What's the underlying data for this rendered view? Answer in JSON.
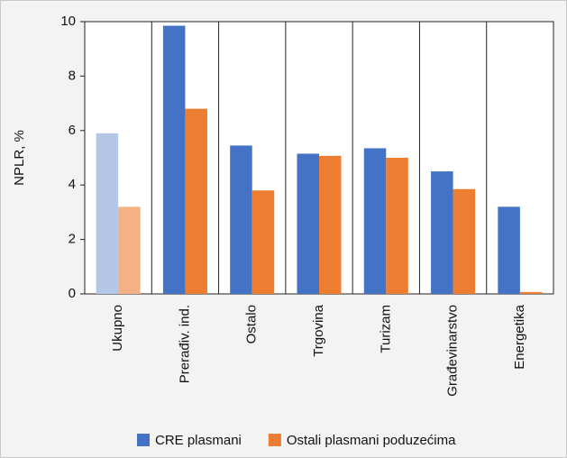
{
  "chart_data": {
    "type": "bar",
    "y_label": "NPLR, %",
    "categories": [
      "Ukupno",
      "Prerađiv. ind.",
      "Ostalo",
      "Trgovina",
      "Turizam",
      "Građevinarstvo",
      "Energetika"
    ],
    "series": [
      {
        "name": "CRE plasmani",
        "color": "#4472c4",
        "colors": [
          "#b4c7e7",
          "#4472c4",
          "#4472c4",
          "#4472c4",
          "#4472c4",
          "#4472c4",
          "#4472c4"
        ],
        "values": [
          5.9,
          9.85,
          5.45,
          5.15,
          5.35,
          4.5,
          3.2
        ]
      },
      {
        "name": "Ostali plasmani poduzećima",
        "color": "#ed7d31",
        "colors": [
          "#f4b183",
          "#ed7d31",
          "#ed7d31",
          "#ed7d31",
          "#ed7d31",
          "#ed7d31",
          "#ed7d31"
        ],
        "values": [
          3.2,
          6.8,
          3.8,
          5.07,
          5.0,
          3.85,
          0.07
        ]
      }
    ],
    "ylim": [
      0,
      10
    ],
    "yticks": [
      0,
      2,
      4,
      6,
      8,
      10
    ],
    "grid": "vertical",
    "legend": "bottom"
  }
}
